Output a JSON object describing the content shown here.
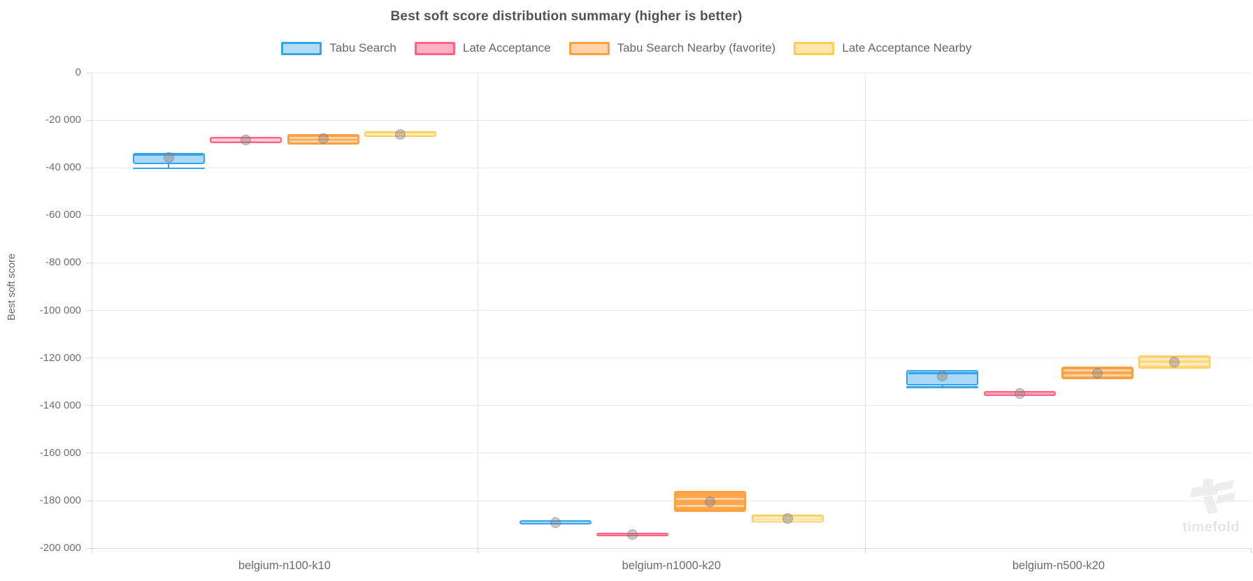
{
  "title": "Best soft score distribution summary (higher is better)",
  "watermark": {
    "text": "timefold",
    "logo_icon": "timefold-flag-logo"
  },
  "chart_data": {
    "type": "boxplot",
    "title": "Best soft score distribution summary (higher is better)",
    "ylabel": "Best soft score",
    "ylim": [
      -200000,
      0
    ],
    "y_tick_step": 20000,
    "y_ticks": [
      "0",
      "-20 000",
      "-40 000",
      "-60 000",
      "-80 000",
      "-100 000",
      "-120 000",
      "-140 000",
      "-160 000",
      "-180 000",
      "-200 000"
    ],
    "grid": true,
    "legend_position": "top",
    "categories": [
      "belgium-n100-k10",
      "belgium-n1000-k20",
      "belgium-n500-k20"
    ],
    "series": [
      {
        "name": "Tabu Search",
        "border_color": "#36a2eb",
        "fill_color": "rgba(54,162,235,0.42)",
        "legend_fill": "rgba(54,162,235,0.38)",
        "median_style": "solid",
        "boxes": [
          {
            "q1": -38700,
            "median": -34700,
            "q3": -34000,
            "mean": -35800,
            "min": -40300
          },
          {
            "q1": -190100,
            "median": -188800,
            "q3": -188400,
            "mean": -189300
          },
          {
            "q1": -131600,
            "median": -126600,
            "q3": -125200,
            "mean": -127700,
            "min": -132400
          }
        ]
      },
      {
        "name": "Late Acceptance",
        "border_color": "#ff6384",
        "fill_color": "rgba(255,99,132,0.6)",
        "legend_fill": "rgba(255,99,132,0.5)",
        "median_style": "pale",
        "boxes": [
          {
            "q1": -29900,
            "median": -28500,
            "q3": -27200,
            "mean": -28500
          },
          {
            "q1": -195100,
            "median": -194300,
            "q3": -193500,
            "mean": -194300
          },
          {
            "q1": -136100,
            "median": -135100,
            "q3": -134100,
            "mean": -135100
          }
        ]
      },
      {
        "name": "Tabu Search Nearby (favorite)",
        "border_color": "#ff9f40",
        "fill_color": "rgba(255,159,64,0.93)",
        "legend_fill": "rgba(255,159,64,0.45)",
        "median_style": "pale",
        "boxes": [
          {
            "q1": -30400,
            "median": -27500,
            "median2": -29100,
            "q3": -25900,
            "mean": -27800
          },
          {
            "q1": -184800,
            "median": -179500,
            "median2": -182400,
            "q3": -175900,
            "mean": -180600
          },
          {
            "q1": -128900,
            "median": -125400,
            "median2": -127400,
            "q3": -123700,
            "mean": -126400
          }
        ]
      },
      {
        "name": "Late Acceptance Nearby",
        "border_color": "#ffcd56",
        "fill_color": "rgba(255,205,86,0.72)",
        "legend_fill": "rgba(255,205,86,0.5)",
        "median_style": "pale",
        "boxes": [
          {
            "q1": -27300,
            "median": -26100,
            "q3": -24900,
            "mean": -26100
          },
          {
            "q1": -189300,
            "median": -187300,
            "median2": -188600,
            "q3": -185900,
            "mean": -187700
          },
          {
            "q1": -124700,
            "median": -120800,
            "median2": -122800,
            "q3": -119100,
            "mean": -121900
          }
        ]
      }
    ]
  }
}
